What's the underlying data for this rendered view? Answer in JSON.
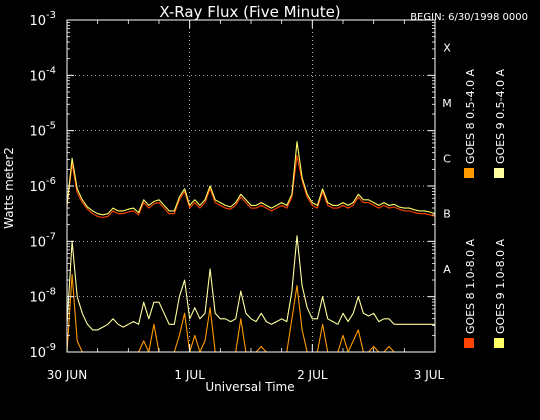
{
  "chart_data": {
    "type": "line",
    "title": "X-Ray Flux (Five Minute)",
    "begin_label": "BEGIN: 6/30/1998 0000",
    "xlabel": "Universal Time",
    "ylabel": "Watts meter2",
    "x_ticks": [
      {
        "value": 0,
        "label": "30 JUN"
      },
      {
        "value": 24,
        "label": "1 JUL"
      },
      {
        "value": 48,
        "label": "2 JUL"
      },
      {
        "value": 72,
        "label": "3 JUL"
      }
    ],
    "xlim": [
      0,
      72
    ],
    "ylim_log10": [
      -9,
      -3
    ],
    "y_scale": "log",
    "y_ticks": [
      {
        "exp": -9,
        "base": "10",
        "sup": "-9"
      },
      {
        "exp": -8,
        "base": "10",
        "sup": "-8"
      },
      {
        "exp": -7,
        "base": "10",
        "sup": "-7"
      },
      {
        "exp": -6,
        "base": "10",
        "sup": "-6"
      },
      {
        "exp": -5,
        "base": "10",
        "sup": "-5"
      },
      {
        "exp": -4,
        "base": "10",
        "sup": "-4"
      },
      {
        "exp": -3,
        "base": "10",
        "sup": "-3"
      }
    ],
    "flare_classes": [
      {
        "label": "A",
        "exp": -8
      },
      {
        "label": "B",
        "exp": -7
      },
      {
        "label": "C",
        "exp": -6
      },
      {
        "label": "M",
        "exp": -5
      },
      {
        "label": "X",
        "exp": -4
      }
    ],
    "grid": "dotted",
    "legend_position": "right",
    "series": [
      {
        "name": "GOES 8 1.0-8.0 A",
        "color": "#ff4400",
        "x": [
          0,
          1,
          2,
          3,
          4,
          5,
          6,
          7,
          8,
          9,
          10,
          11,
          12,
          13,
          14,
          15,
          16,
          17,
          18,
          19,
          20,
          21,
          22,
          23,
          24,
          25,
          26,
          27,
          28,
          29,
          30,
          31,
          32,
          33,
          34,
          35,
          36,
          37,
          38,
          39,
          40,
          41,
          42,
          43,
          44,
          45,
          46,
          47,
          48,
          49,
          50,
          51,
          52,
          53,
          54,
          55,
          56,
          57,
          58,
          59,
          60,
          61,
          62,
          63,
          64,
          65,
          66,
          67,
          68,
          69,
          70,
          71,
          72
        ],
        "log10_y": [
          -6.38,
          -5.6,
          -6.12,
          -6.3,
          -6.42,
          -6.5,
          -6.55,
          -6.57,
          -6.55,
          -6.45,
          -6.5,
          -6.5,
          -6.47,
          -6.45,
          -6.52,
          -6.3,
          -6.4,
          -6.32,
          -6.3,
          -6.4,
          -6.5,
          -6.5,
          -6.25,
          -6.1,
          -6.4,
          -6.3,
          -6.4,
          -6.3,
          -6.05,
          -6.3,
          -6.35,
          -6.4,
          -6.42,
          -6.35,
          -6.2,
          -6.3,
          -6.4,
          -6.4,
          -6.35,
          -6.4,
          -6.45,
          -6.4,
          -6.35,
          -6.4,
          -6.2,
          -5.45,
          -5.9,
          -6.2,
          -6.35,
          -6.4,
          -6.1,
          -6.35,
          -6.4,
          -6.4,
          -6.35,
          -6.4,
          -6.35,
          -6.2,
          -6.3,
          -6.3,
          -6.35,
          -6.4,
          -6.35,
          -6.4,
          -6.38,
          -6.42,
          -6.45,
          -6.45,
          -6.48,
          -6.5,
          -6.5,
          -6.52,
          -6.55
        ]
      },
      {
        "name": "GOES 8 0.5-4.0 A",
        "color": "#ff9a00",
        "x": [
          0,
          1,
          2,
          3,
          4,
          5,
          6,
          7,
          8,
          9,
          10,
          11,
          12,
          13,
          14,
          15,
          16,
          17,
          18,
          19,
          20,
          21,
          22,
          23,
          24,
          25,
          26,
          27,
          28,
          29,
          30,
          31,
          32,
          33,
          34,
          35,
          36,
          37,
          38,
          39,
          40,
          41,
          42,
          43,
          44,
          45,
          46,
          47,
          48,
          49,
          50,
          51,
          52,
          53,
          54,
          55,
          56,
          57,
          58,
          59,
          60,
          61,
          62,
          63,
          64,
          65,
          66,
          67,
          68,
          69,
          70,
          71,
          72
        ],
        "log10_y": [
          -9.0,
          -7.6,
          -8.8,
          -9.0,
          -9.0,
          -9.0,
          -9.0,
          -9.0,
          -9.0,
          -9.0,
          -9.0,
          -9.0,
          -9.0,
          -9.0,
          -9.0,
          -8.8,
          -9.0,
          -8.5,
          -9.0,
          -9.0,
          -9.0,
          -9.0,
          -8.7,
          -8.3,
          -9.0,
          -8.7,
          -9.0,
          -8.8,
          -8.2,
          -9.0,
          -9.0,
          -9.0,
          -9.0,
          -9.0,
          -8.4,
          -9.0,
          -9.0,
          -9.0,
          -8.9,
          -9.0,
          -9.0,
          -9.0,
          -9.0,
          -9.0,
          -8.4,
          -7.8,
          -8.6,
          -9.0,
          -9.0,
          -9.0,
          -8.5,
          -9.0,
          -9.0,
          -9.0,
          -8.7,
          -9.0,
          -8.8,
          -8.6,
          -9.0,
          -9.0,
          -8.9,
          -9.0,
          -9.0,
          -8.9,
          -9.0,
          -9.0,
          -9.0,
          -9.0,
          -9.0,
          -9.0,
          -9.0,
          -9.0,
          -9.0
        ]
      },
      {
        "name": "GOES 9 1.0-8.0 A",
        "color": "#ffff66",
        "x": [
          0,
          1,
          2,
          3,
          4,
          5,
          6,
          7,
          8,
          9,
          10,
          11,
          12,
          13,
          14,
          15,
          16,
          17,
          18,
          19,
          20,
          21,
          22,
          23,
          24,
          25,
          26,
          27,
          28,
          29,
          30,
          31,
          32,
          33,
          34,
          35,
          36,
          37,
          38,
          39,
          40,
          41,
          42,
          43,
          44,
          45,
          46,
          47,
          48,
          49,
          50,
          51,
          52,
          53,
          54,
          55,
          56,
          57,
          58,
          59,
          60,
          61,
          62,
          63,
          64,
          65,
          66,
          67,
          68,
          69,
          70,
          71,
          72
        ],
        "log10_y": [
          -6.35,
          -5.5,
          -6.05,
          -6.25,
          -6.38,
          -6.45,
          -6.5,
          -6.52,
          -6.5,
          -6.4,
          -6.45,
          -6.45,
          -6.42,
          -6.4,
          -6.48,
          -6.25,
          -6.35,
          -6.28,
          -6.25,
          -6.35,
          -6.45,
          -6.45,
          -6.2,
          -6.05,
          -6.35,
          -6.25,
          -6.35,
          -6.25,
          -6.0,
          -6.25,
          -6.3,
          -6.35,
          -6.38,
          -6.3,
          -6.15,
          -6.25,
          -6.35,
          -6.35,
          -6.3,
          -6.35,
          -6.4,
          -6.35,
          -6.3,
          -6.35,
          -6.15,
          -5.2,
          -5.85,
          -6.15,
          -6.3,
          -6.35,
          -6.05,
          -6.3,
          -6.35,
          -6.35,
          -6.3,
          -6.35,
          -6.3,
          -6.15,
          -6.25,
          -6.25,
          -6.3,
          -6.35,
          -6.3,
          -6.35,
          -6.33,
          -6.38,
          -6.4,
          -6.4,
          -6.43,
          -6.45,
          -6.45,
          -6.47,
          -6.5
        ]
      },
      {
        "name": "GOES 9 0.5-4.0 A",
        "color": "#ffffa0",
        "x": [
          0,
          1,
          2,
          3,
          4,
          5,
          6,
          7,
          8,
          9,
          10,
          11,
          12,
          13,
          14,
          15,
          16,
          17,
          18,
          19,
          20,
          21,
          22,
          23,
          24,
          25,
          26,
          27,
          28,
          29,
          30,
          31,
          32,
          33,
          34,
          35,
          36,
          37,
          38,
          39,
          40,
          41,
          42,
          43,
          44,
          45,
          46,
          47,
          48,
          49,
          50,
          51,
          52,
          53,
          54,
          55,
          56,
          57,
          58,
          59,
          60,
          61,
          62,
          63,
          64,
          65,
          66,
          67,
          68,
          69,
          70,
          71,
          72
        ],
        "log10_y": [
          -8.5,
          -7.0,
          -8.0,
          -8.3,
          -8.5,
          -8.6,
          -8.6,
          -8.55,
          -8.5,
          -8.4,
          -8.5,
          -8.55,
          -8.5,
          -8.45,
          -8.5,
          -8.1,
          -8.4,
          -8.1,
          -8.1,
          -8.3,
          -8.5,
          -8.5,
          -8.0,
          -7.7,
          -8.4,
          -8.2,
          -8.4,
          -8.3,
          -7.5,
          -8.3,
          -8.4,
          -8.4,
          -8.45,
          -8.4,
          -7.9,
          -8.3,
          -8.4,
          -8.45,
          -8.3,
          -8.45,
          -8.5,
          -8.45,
          -8.4,
          -8.45,
          -7.9,
          -6.9,
          -7.8,
          -8.2,
          -8.4,
          -8.4,
          -8.0,
          -8.4,
          -8.45,
          -8.5,
          -8.3,
          -8.45,
          -8.3,
          -8.0,
          -8.3,
          -8.35,
          -8.3,
          -8.45,
          -8.4,
          -8.4,
          -8.5,
          -8.5,
          -8.5,
          -8.5,
          -8.5,
          -8.5,
          -8.5,
          -8.5,
          -8.5
        ]
      }
    ]
  }
}
